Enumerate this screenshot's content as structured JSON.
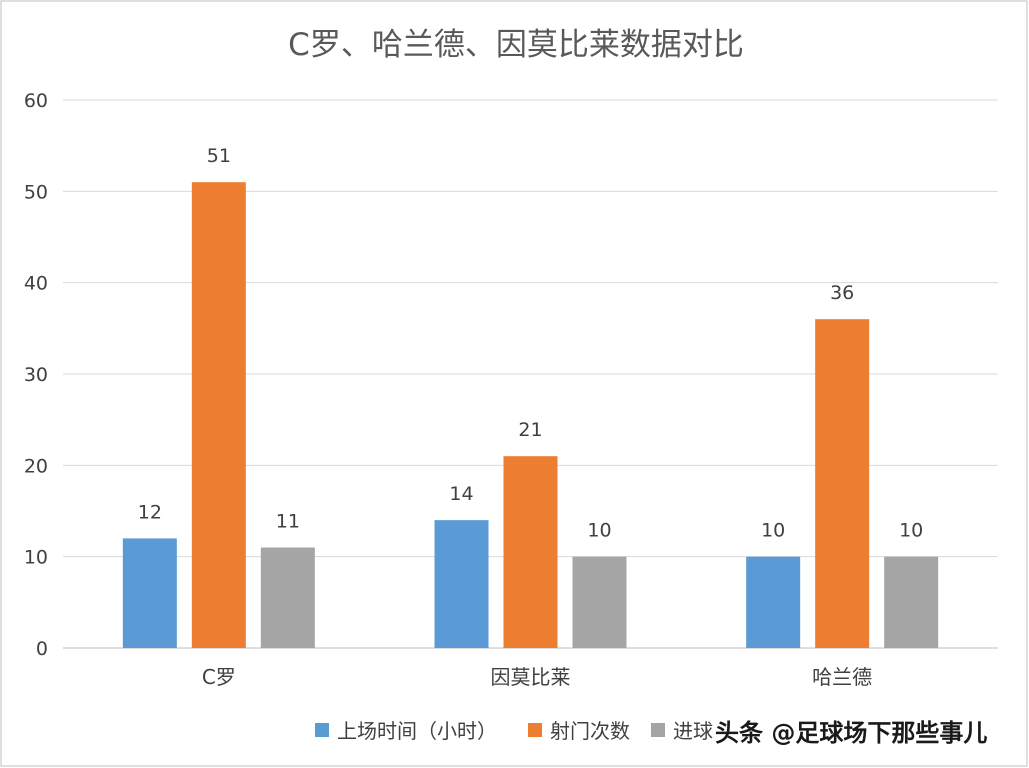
{
  "chart_data": {
    "type": "bar",
    "title": "C罗、哈兰德、因莫比莱数据对比",
    "categories": [
      "C罗",
      "因莫比莱",
      "哈兰德"
    ],
    "series": [
      {
        "name": "上场时间（小时）",
        "values": [
          12,
          14,
          10
        ],
        "color": "#5B9BD5"
      },
      {
        "name": "射门次数",
        "values": [
          51,
          21,
          36
        ],
        "color": "#ED7D31"
      },
      {
        "name": "进球",
        "values": [
          11,
          10,
          10
        ],
        "color": "#A5A5A5"
      }
    ],
    "y_ticks": [
      0,
      10,
      20,
      30,
      40,
      50,
      60
    ],
    "ylim": [
      0,
      60
    ],
    "grid": true,
    "data_labels": true,
    "legend_position": "bottom"
  },
  "legend_display_names": [
    "上场时间（小时）",
    "射门次数",
    "进球"
  ],
  "watermark": "头条 @足球场下那些事儿",
  "colors": {
    "gridline": "#D9D9D9",
    "axis": "#BFBFBF",
    "frame": "#BFBFBF"
  }
}
